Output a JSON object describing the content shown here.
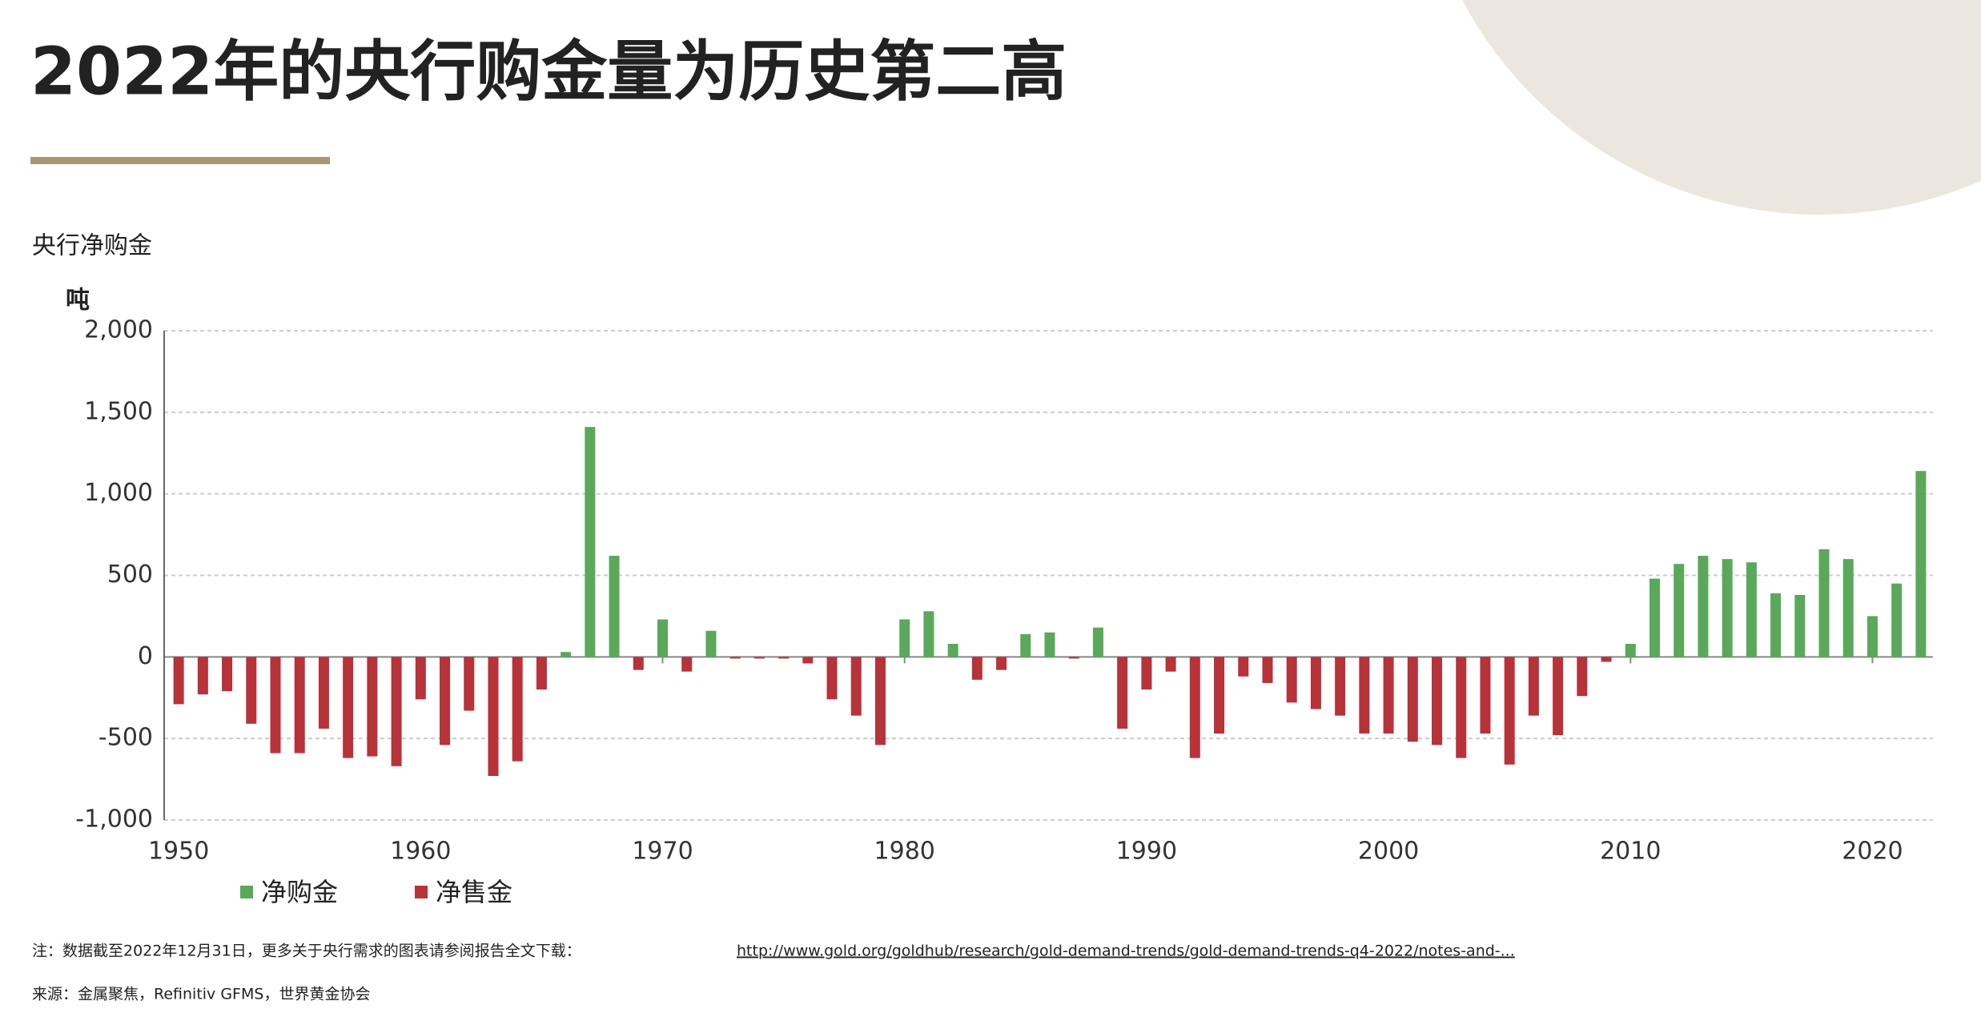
{
  "chart_data": {
    "type": "bar",
    "title": "2022年的央行购金量为历史第二高",
    "subtitle": "央行净购金",
    "y_label": "吨",
    "x": [
      1950,
      1951,
      1952,
      1953,
      1954,
      1955,
      1956,
      1957,
      1958,
      1959,
      1960,
      1961,
      1962,
      1963,
      1964,
      1965,
      1966,
      1967,
      1968,
      1969,
      1970,
      1971,
      1972,
      1973,
      1974,
      1975,
      1976,
      1977,
      1978,
      1979,
      1980,
      1981,
      1982,
      1983,
      1984,
      1985,
      1986,
      1987,
      1988,
      1989,
      1990,
      1991,
      1992,
      1993,
      1994,
      1995,
      1996,
      1997,
      1998,
      1999,
      2000,
      2001,
      2002,
      2003,
      2004,
      2005,
      2006,
      2007,
      2008,
      2009,
      2010,
      2011,
      2012,
      2013,
      2014,
      2015,
      2016,
      2017,
      2018,
      2019,
      2020,
      2021,
      2022
    ],
    "series": [
      {
        "name": "净购金",
        "color": "#5aa85a",
        "values": [
          null,
          null,
          null,
          null,
          null,
          null,
          null,
          null,
          null,
          null,
          null,
          null,
          null,
          null,
          null,
          null,
          30,
          1410,
          620,
          null,
          230,
          null,
          160,
          null,
          null,
          null,
          null,
          null,
          null,
          null,
          230,
          280,
          80,
          null,
          null,
          140,
          150,
          null,
          180,
          null,
          null,
          null,
          null,
          null,
          null,
          null,
          null,
          null,
          null,
          null,
          null,
          null,
          null,
          null,
          null,
          null,
          null,
          null,
          null,
          null,
          80,
          480,
          570,
          620,
          600,
          580,
          390,
          380,
          660,
          600,
          250,
          450,
          1140
        ]
      },
      {
        "name": "净售金",
        "color": "#b8323a",
        "values": [
          -290,
          -230,
          -210,
          -410,
          -590,
          -590,
          -440,
          -620,
          -610,
          -670,
          -260,
          -540,
          -330,
          -730,
          -640,
          -200,
          null,
          null,
          null,
          -80,
          null,
          -90,
          null,
          -10,
          -10,
          -10,
          -40,
          -260,
          -360,
          -540,
          null,
          null,
          null,
          -140,
          -80,
          null,
          null,
          -10,
          null,
          -440,
          -200,
          -90,
          -620,
          -470,
          -120,
          -160,
          -280,
          -320,
          -360,
          -470,
          -470,
          -520,
          -540,
          -620,
          -470,
          -660,
          -360,
          -480,
          -240,
          -30,
          null,
          null,
          null,
          null,
          null,
          null,
          null,
          null,
          null,
          null,
          null,
          null,
          null
        ]
      }
    ],
    "xlim": [
      1949.4,
      2022.5
    ],
    "xticks": [
      1950,
      1960,
      1970,
      1980,
      1990,
      2000,
      2010,
      2020
    ],
    "ylim": [
      -1000,
      2000
    ],
    "yticks": [
      {
        "value": -1000,
        "label": "-1,000"
      },
      -500,
      0,
      500,
      {
        "value": 1000,
        "label": "1,000"
      },
      {
        "value": 1500,
        "label": "1,500"
      },
      {
        "value": 2000,
        "label": "2,000"
      }
    ],
    "grid": true,
    "notes": [
      "注：数据截至2022年12月31日，更多关于央行需求的图表请参阅报告全文下载：",
      "http://www.gold.org/goldhub/research/gold-demand-trends/gold-demand-trends-q4-2022/notes-and-...",
      "来源：金属聚焦，Refinitiv GFMS，世界黄金协会"
    ]
  }
}
